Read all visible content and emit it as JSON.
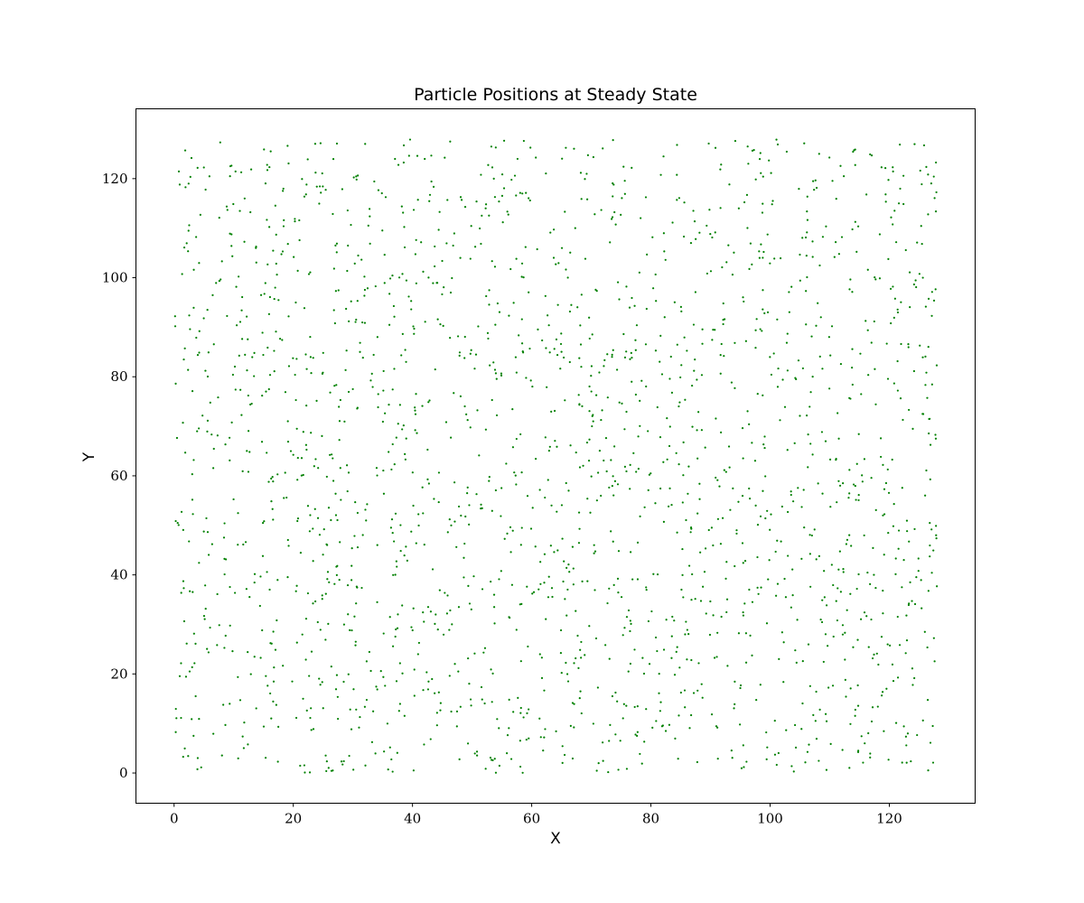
{
  "chart_data": {
    "type": "scatter",
    "title": "Particle Positions at Steady State",
    "xlabel": "X",
    "ylabel": "Y",
    "xlim": [
      -6.4,
      134.4
    ],
    "ylim": [
      -6.1,
      134.1
    ],
    "x_ticks": [
      0,
      20,
      40,
      60,
      80,
      100,
      120
    ],
    "y_ticks": [
      0,
      20,
      40,
      60,
      80,
      100,
      120
    ],
    "grid": false,
    "marker": "point",
    "series": [
      {
        "color": "#008000",
        "point_count": 2048,
        "x_range": [
          0,
          128
        ],
        "y_range": [
          0,
          128
        ]
      }
    ]
  }
}
